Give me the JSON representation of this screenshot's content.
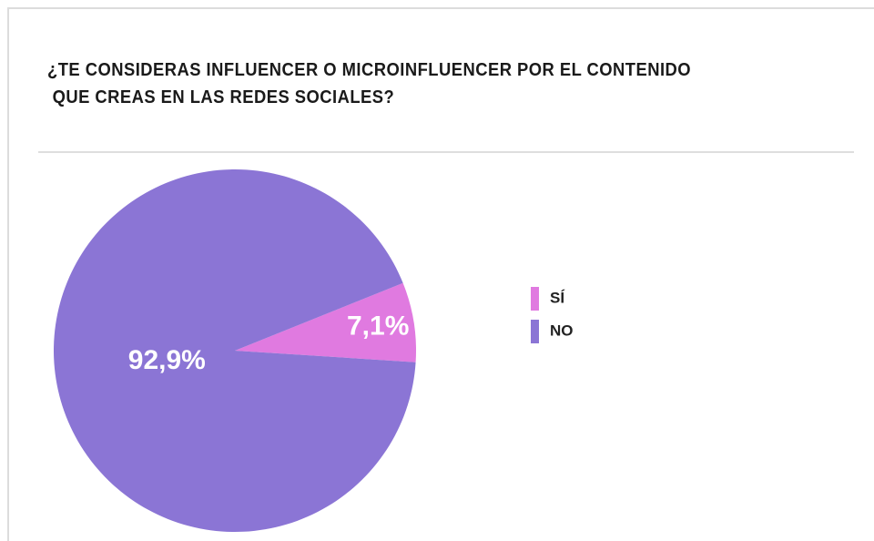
{
  "chart_data": {
    "type": "pie",
    "title": "¿TE CONSIDERAS INFLUENCER O MICROINFLUENCER POR EL CONTENIDO\n QUE CREAS EN LAS REDES SOCIALES?",
    "categories": [
      "SÍ",
      "NO"
    ],
    "values": [
      7.1,
      92.9
    ],
    "value_labels": [
      "7,1%",
      "92,9%"
    ],
    "colors": [
      "#e07ae0",
      "#8b75d5"
    ],
    "legend": "right"
  }
}
